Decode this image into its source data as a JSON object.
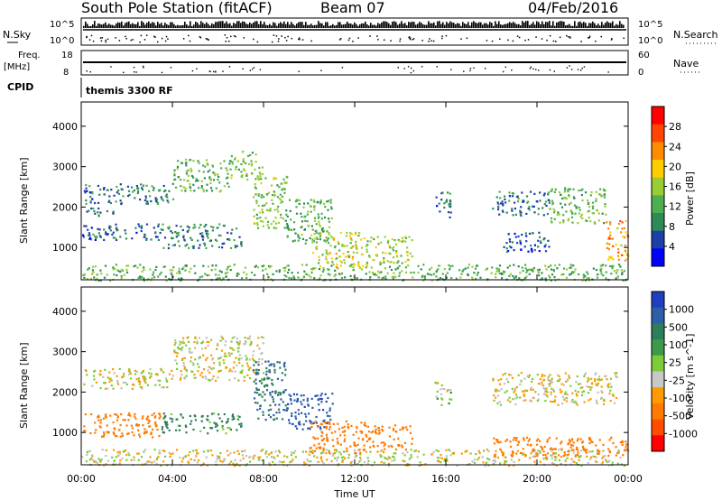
{
  "header": {
    "station": "South Pole Station (fitACF)",
    "beam": "Beam 07",
    "date": "04/Feb/2016"
  },
  "status_panels": {
    "nsky_label": "N.Sky",
    "nsearch_label": "N.Search",
    "nsky_ticks": [
      "10^5",
      "10^0"
    ],
    "nsearch_ticks": [
      "10^5",
      "10^0"
    ],
    "freq_label": "Freq.",
    "freq_unit": "[MHz]",
    "freq_ticks": [
      "18",
      "8"
    ],
    "nave_label": "Nave",
    "nave_ticks": [
      "60",
      "0"
    ],
    "cpid_label": "CPID",
    "cpid_value": "themis 3300 RF"
  },
  "colors": {
    "power_scale": [
      "#0000ff",
      "#1e3fa8",
      "#2e8b57",
      "#4caf50",
      "#9acd32",
      "#ffcc00",
      "#ff8c00",
      "#ff4500",
      "#ff0000"
    ],
    "velocity_scale": [
      "#1f3fbf",
      "#2c5fa8",
      "#2e7d5b",
      "#3c9a4a",
      "#7ccc3a",
      "#c8c8c8",
      "#ff9a00",
      "#ff7a00",
      "#ff4d00",
      "#ff0000"
    ],
    "ground_scatter": "#c0c0c0"
  },
  "chart_data": [
    {
      "type": "heatmap",
      "title": "",
      "xlabel": "",
      "ylabel": "Slant Range [km]",
      "x_ticks": [
        "00:00",
        "04:00",
        "08:00",
        "12:00",
        "16:00",
        "20:00",
        "00:00"
      ],
      "y_ticks": [
        1000,
        2000,
        3000,
        4000
      ],
      "ylim": [
        200,
        4600
      ],
      "colorbar_label": "Power [dB]",
      "colorbar_ticks": [
        4,
        8,
        12,
        16,
        20,
        24,
        28
      ],
      "scatter_regions": [
        {
          "t_start": 0.0,
          "t_end": 24.0,
          "r_min": 200,
          "r_max": 600,
          "value": 12
        },
        {
          "t_start": 0.0,
          "t_end": 1.0,
          "r_min": 2100,
          "r_max": 2600,
          "value": 6
        },
        {
          "t_start": 1.0,
          "t_end": 4.0,
          "r_min": 2100,
          "r_max": 2600,
          "value": 7
        },
        {
          "t_start": 4.0,
          "t_end": 6.5,
          "r_min": 2400,
          "r_max": 3200,
          "value": 12
        },
        {
          "t_start": 6.5,
          "t_end": 8.0,
          "r_min": 2700,
          "r_max": 3400,
          "value": 14
        },
        {
          "t_start": 0.0,
          "t_end": 3.5,
          "r_min": 1200,
          "r_max": 1600,
          "value": 6
        },
        {
          "t_start": 0.0,
          "t_end": 1.5,
          "r_min": 1800,
          "r_max": 2000,
          "value": 7
        },
        {
          "t_start": 3.5,
          "t_end": 7.0,
          "r_min": 1000,
          "r_max": 1600,
          "value": 8
        },
        {
          "t_start": 7.5,
          "t_end": 9.0,
          "r_min": 1500,
          "r_max": 2800,
          "value": 14
        },
        {
          "t_start": 9.0,
          "t_end": 11.0,
          "r_min": 1100,
          "r_max": 2200,
          "value": 11
        },
        {
          "t_start": 10.0,
          "t_end": 12.5,
          "r_min": 500,
          "r_max": 1400,
          "value": 18
        },
        {
          "t_start": 12.5,
          "t_end": 14.5,
          "r_min": 600,
          "r_max": 1300,
          "value": 15
        },
        {
          "t_start": 15.5,
          "t_end": 16.2,
          "r_min": 1700,
          "r_max": 2400,
          "value": 6
        },
        {
          "t_start": 18.0,
          "t_end": 20.5,
          "r_min": 1800,
          "r_max": 2400,
          "value": 7
        },
        {
          "t_start": 20.5,
          "t_end": 23.0,
          "r_min": 1600,
          "r_max": 2500,
          "value": 13
        },
        {
          "t_start": 18.5,
          "t_end": 20.5,
          "r_min": 900,
          "r_max": 1400,
          "value": 5
        },
        {
          "t_start": 23.0,
          "t_end": 24.0,
          "r_min": 700,
          "r_max": 1700,
          "value": 22
        }
      ]
    },
    {
      "type": "heatmap",
      "title": "",
      "xlabel": "Time UT",
      "ylabel": "Slant Range [km]",
      "x_ticks": [
        "00:00",
        "04:00",
        "08:00",
        "12:00",
        "16:00",
        "20:00",
        "00:00"
      ],
      "y_ticks": [
        1000,
        2000,
        3000,
        4000
      ],
      "ylim": [
        200,
        4600
      ],
      "colorbar_label": "Velocity [m s^-1]",
      "colorbar_ticks": [
        1000,
        500,
        100,
        25,
        -25,
        -100,
        -500,
        -1000
      ],
      "scatter_regions": [
        {
          "t_start": 0.0,
          "t_end": 24.0,
          "r_min": 200,
          "r_max": 600,
          "value": 0
        },
        {
          "t_start": 0.0,
          "t_end": 4.0,
          "r_min": 2100,
          "r_max": 2600,
          "value": 0
        },
        {
          "t_start": 4.0,
          "t_end": 8.0,
          "r_min": 2300,
          "r_max": 3400,
          "value": 0
        },
        {
          "t_start": 0.0,
          "t_end": 3.5,
          "r_min": 900,
          "r_max": 1500,
          "value": -300
        },
        {
          "t_start": 3.5,
          "t_end": 7.0,
          "r_min": 1000,
          "r_max": 1500,
          "value": 150
        },
        {
          "t_start": 7.5,
          "t_end": 9.0,
          "r_min": 1300,
          "r_max": 2800,
          "value": 300
        },
        {
          "t_start": 9.0,
          "t_end": 11.0,
          "r_min": 1100,
          "r_max": 2000,
          "value": 700
        },
        {
          "t_start": 10.0,
          "t_end": 12.5,
          "r_min": 500,
          "r_max": 1300,
          "value": -200
        },
        {
          "t_start": 12.5,
          "t_end": 14.5,
          "r_min": 600,
          "r_max": 1200,
          "value": -300
        },
        {
          "t_start": 15.5,
          "t_end": 16.2,
          "r_min": 1700,
          "r_max": 2300,
          "value": 50
        },
        {
          "t_start": 18.0,
          "t_end": 23.5,
          "r_min": 1700,
          "r_max": 2500,
          "value": 0
        },
        {
          "t_start": 18.0,
          "t_end": 24.0,
          "r_min": 400,
          "r_max": 900,
          "value": -300
        }
      ]
    }
  ]
}
